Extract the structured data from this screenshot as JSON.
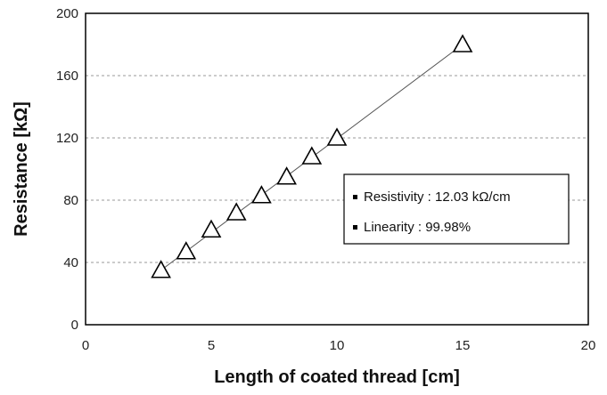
{
  "chart_data": {
    "type": "scatter",
    "title": "",
    "xlabel": "Length of coated thread [cm]",
    "ylabel": "Resistance [kΩ]",
    "xlim": [
      0,
      20
    ],
    "ylim": [
      0,
      200
    ],
    "xticks": [
      "0",
      "5",
      "10",
      "15",
      "20"
    ],
    "yticks": [
      "0",
      "40",
      "80",
      "120",
      "160",
      "200"
    ],
    "grid": "horizontal dashed",
    "marker": "open triangle",
    "series": [
      {
        "x": [
          3,
          4,
          5,
          6,
          7,
          8,
          9,
          10,
          15
        ],
        "y": [
          35,
          47,
          61,
          72,
          83,
          95,
          108,
          120,
          180
        ]
      }
    ],
    "fit_line": {
      "x": [
        3,
        15
      ],
      "y": [
        35,
        180
      ]
    },
    "annotations": [
      "Resistivity : 12.03 kΩ/cm",
      "Linearity : 99.98%"
    ],
    "annotation_placement": "right-center"
  }
}
